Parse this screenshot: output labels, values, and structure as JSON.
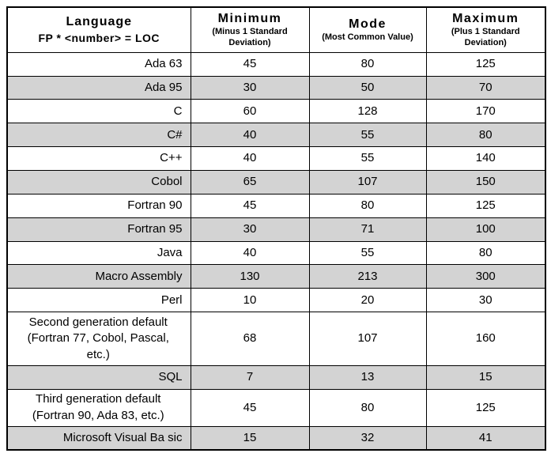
{
  "colors": {
    "row_shaded": "#d3d3d3",
    "border": "#000000",
    "background": "#ffffff"
  },
  "table": {
    "header": {
      "language": {
        "title": "Language",
        "subtitle": "FP * <number> = LOC"
      },
      "columns": [
        {
          "title": "Minimum",
          "subtitle": "(Minus 1 Standard Deviation)"
        },
        {
          "title": "Mode",
          "subtitle": "(Most Common Value)"
        },
        {
          "title": "Maximum",
          "subtitle": "(Plus 1 Standard Deviation)"
        }
      ]
    },
    "rows": [
      {
        "language": "Ada 63",
        "min": "45",
        "mode": "80",
        "max": "125",
        "shaded": false,
        "align": "right"
      },
      {
        "language": "Ada 95",
        "min": "30",
        "mode": "50",
        "max": "70",
        "shaded": true,
        "align": "right"
      },
      {
        "language": "C",
        "min": "60",
        "mode": "128",
        "max": "170",
        "shaded": false,
        "align": "right"
      },
      {
        "language": "C#",
        "min": "40",
        "mode": "55",
        "max": "80",
        "shaded": true,
        "align": "right"
      },
      {
        "language": "C++",
        "min": "40",
        "mode": "55",
        "max": "140",
        "shaded": false,
        "align": "right"
      },
      {
        "language": "Cobol",
        "min": "65",
        "mode": "107",
        "max": "150",
        "shaded": true,
        "align": "right"
      },
      {
        "language": "Fortran 90",
        "min": "45",
        "mode": "80",
        "max": "125",
        "shaded": false,
        "align": "right"
      },
      {
        "language": "Fortran 95",
        "min": "30",
        "mode": "71",
        "max": "100",
        "shaded": true,
        "align": "right"
      },
      {
        "language": "Java",
        "min": "40",
        "mode": "55",
        "max": "80",
        "shaded": false,
        "align": "right"
      },
      {
        "language": "Macro Assembly",
        "min": "130",
        "mode": "213",
        "max": "300",
        "shaded": true,
        "align": "right"
      },
      {
        "language": "Perl",
        "min": "10",
        "mode": "20",
        "max": "30",
        "shaded": false,
        "align": "right"
      },
      {
        "language": "Second generation default (Fortran 77, Cobol, Pascal, etc.)",
        "min": "68",
        "mode": "107",
        "max": "160",
        "shaded": false,
        "align": "center"
      },
      {
        "language": "SQL",
        "min": "7",
        "mode": "13",
        "max": "15",
        "shaded": true,
        "align": "right"
      },
      {
        "language": "Third generation default (Fortran 90, Ada 83, etc.)",
        "min": "45",
        "mode": "80",
        "max": "125",
        "shaded": false,
        "align": "center"
      },
      {
        "language": "Microsoft Visual Ba sic",
        "min": "15",
        "mode": "32",
        "max": "41",
        "shaded": true,
        "align": "right"
      }
    ]
  }
}
